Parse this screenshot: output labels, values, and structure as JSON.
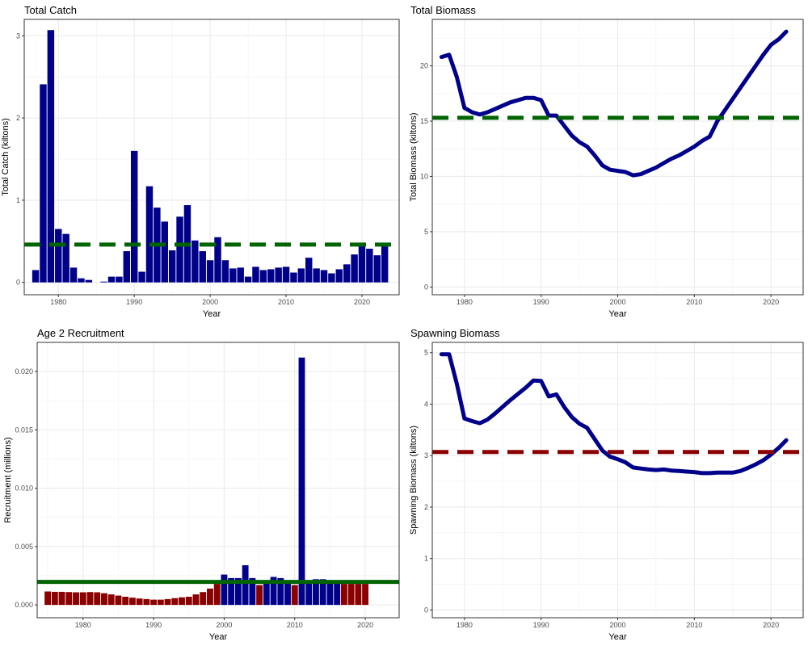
{
  "chart_data": [
    {
      "type": "bar",
      "title": "Total Catch",
      "xlabel": "Year",
      "ylabel": "Total Catch (kiltons)",
      "xlim": [
        1975.5,
        2024.9
      ],
      "ylim": [
        -0.15,
        3.2
      ],
      "x_ticks": [
        1980,
        1990,
        2000,
        2010,
        2020
      ],
      "y_ticks": [
        0,
        1,
        2,
        3
      ],
      "grid": true,
      "bar_color": "#00008B",
      "x": [
        1977,
        1978,
        1979,
        1980,
        1981,
        1982,
        1983,
        1984,
        1985,
        1986,
        1987,
        1988,
        1989,
        1990,
        1991,
        1992,
        1993,
        1994,
        1995,
        1996,
        1997,
        1998,
        1999,
        2000,
        2001,
        2002,
        2003,
        2004,
        2005,
        2006,
        2007,
        2008,
        2009,
        2010,
        2011,
        2012,
        2013,
        2014,
        2015,
        2016,
        2017,
        2018,
        2019,
        2020,
        2021,
        2022,
        2023
      ],
      "values": [
        0.15,
        2.41,
        3.07,
        0.65,
        0.59,
        0.18,
        0.05,
        0.03,
        0,
        0.01,
        0.07,
        0.07,
        0.38,
        1.6,
        0.13,
        1.17,
        0.91,
        0.74,
        0.39,
        0.8,
        0.94,
        0.51,
        0.38,
        0.27,
        0.55,
        0.27,
        0.17,
        0.18,
        0.07,
        0.19,
        0.15,
        0.16,
        0.18,
        0.19,
        0.12,
        0.17,
        0.3,
        0.17,
        0.15,
        0.11,
        0.16,
        0.22,
        0.34,
        0.44,
        0.41,
        0.33,
        0.45
      ],
      "reference_line": {
        "value": 0.46,
        "color": "#006400",
        "style": "dashed"
      }
    },
    {
      "type": "line",
      "title": "Total Biomass",
      "xlabel": "Year",
      "ylabel": "Total Biomass (kiltons)",
      "xlim": [
        1975.8,
        2024.2
      ],
      "ylim": [
        -0.7,
        24.2
      ],
      "x_ticks": [
        1980,
        1990,
        2000,
        2010,
        2020
      ],
      "y_ticks": [
        0,
        5,
        10,
        15,
        20
      ],
      "grid": true,
      "line_color": "#00008B",
      "x": [
        1977,
        1978,
        1979,
        1980,
        1981,
        1982,
        1983,
        1984,
        1985,
        1986,
        1987,
        1988,
        1989,
        1990,
        1991,
        1992,
        1993,
        1994,
        1995,
        1996,
        1997,
        1998,
        1999,
        2000,
        2001,
        2002,
        2003,
        2004,
        2005,
        2006,
        2007,
        2008,
        2009,
        2010,
        2011,
        2012,
        2013,
        2014,
        2015,
        2016,
        2017,
        2018,
        2019,
        2020,
        2021,
        2022
      ],
      "y": [
        20.8,
        21.0,
        19.0,
        16.2,
        15.8,
        15.6,
        15.8,
        16.1,
        16.4,
        16.7,
        16.9,
        17.1,
        17.1,
        16.9,
        15.5,
        15.5,
        14.6,
        13.7,
        13.1,
        12.7,
        11.9,
        11.0,
        10.6,
        10.5,
        10.4,
        10.1,
        10.2,
        10.5,
        10.8,
        11.2,
        11.6,
        11.9,
        12.3,
        12.7,
        13.2,
        13.6,
        15.0,
        16.0,
        17.0,
        18.0,
        19.0,
        20.0,
        21.0,
        21.9,
        22.4,
        23.1
      ],
      "reference_line": {
        "value": 15.3,
        "color": "#006400",
        "style": "dashed"
      }
    },
    {
      "type": "bar",
      "title": "Age 2 Recruitment",
      "xlabel": "Year",
      "ylabel": "Recruitment (millions)",
      "xlim": [
        1973.5,
        2024.8
      ],
      "ylim": [
        -0.0011,
        0.0225
      ],
      "x_ticks": [
        1980,
        1990,
        2000,
        2010,
        2020
      ],
      "y_ticks": [
        0.0,
        0.005,
        0.01,
        0.015,
        0.02
      ],
      "y_tick_labels": [
        "0.000",
        "0.005",
        "0.010",
        "0.015",
        "0.020"
      ],
      "grid": true,
      "x": [
        1975,
        1976,
        1977,
        1978,
        1979,
        1980,
        1981,
        1982,
        1983,
        1984,
        1985,
        1986,
        1987,
        1988,
        1989,
        1990,
        1991,
        1992,
        1993,
        1994,
        1995,
        1996,
        1997,
        1998,
        1999,
        2000,
        2001,
        2002,
        2003,
        2004,
        2005,
        2006,
        2007,
        2008,
        2009,
        2010,
        2011,
        2012,
        2013,
        2014,
        2015,
        2016,
        2017,
        2018,
        2019,
        2020
      ],
      "values": [
        0.00115,
        0.00112,
        0.00112,
        0.0011,
        0.00108,
        0.00108,
        0.0011,
        0.00108,
        0.001,
        0.0009,
        0.0008,
        0.0007,
        0.00062,
        0.00055,
        0.0005,
        0.00045,
        0.00045,
        0.0005,
        0.00058,
        0.00065,
        0.0007,
        0.0009,
        0.0011,
        0.0014,
        0.0018,
        0.0026,
        0.0023,
        0.0023,
        0.0034,
        0.0023,
        0.0017,
        0.0021,
        0.0024,
        0.0023,
        0.0021,
        0.0017,
        0.0212,
        0.0021,
        0.0022,
        0.0022,
        0.0021,
        0.0021,
        0.0018,
        0.0018,
        0.0018,
        0.0018
      ],
      "bar_colors": [
        "#8B0000",
        "#8B0000",
        "#8B0000",
        "#8B0000",
        "#8B0000",
        "#8B0000",
        "#8B0000",
        "#8B0000",
        "#8B0000",
        "#8B0000",
        "#8B0000",
        "#8B0000",
        "#8B0000",
        "#8B0000",
        "#8B0000",
        "#8B0000",
        "#8B0000",
        "#8B0000",
        "#8B0000",
        "#8B0000",
        "#8B0000",
        "#8B0000",
        "#8B0000",
        "#8B0000",
        "#8B0000",
        "#00008B",
        "#00008B",
        "#00008B",
        "#00008B",
        "#00008B",
        "#8B0000",
        "#00008B",
        "#00008B",
        "#00008B",
        "#00008B",
        "#8B0000",
        "#00008B",
        "#00008B",
        "#00008B",
        "#00008B",
        "#00008B",
        "#00008B",
        "#8B0000",
        "#8B0000",
        "#8B0000",
        "#8B0000"
      ],
      "reference_line": {
        "value": 0.00197,
        "color": "#006400",
        "style": "solid"
      }
    },
    {
      "type": "line",
      "title": "Spawning Biomass",
      "xlabel": "Year",
      "ylabel": "Spawning Biomass (kiltons)",
      "xlim": [
        1975.8,
        2024.2
      ],
      "ylim": [
        -0.15,
        5.2
      ],
      "x_ticks": [
        1980,
        1990,
        2000,
        2010,
        2020
      ],
      "y_ticks": [
        0,
        1,
        2,
        3,
        4,
        5
      ],
      "grid": true,
      "line_color": "#00008B",
      "x": [
        1977,
        1978,
        1979,
        1980,
        1981,
        1982,
        1983,
        1984,
        1985,
        1986,
        1987,
        1988,
        1989,
        1990,
        1991,
        1992,
        1993,
        1994,
        1995,
        1996,
        1997,
        1998,
        1999,
        2000,
        2001,
        2002,
        2003,
        2004,
        2005,
        2006,
        2007,
        2008,
        2009,
        2010,
        2011,
        2012,
        2013,
        2014,
        2015,
        2016,
        2017,
        2018,
        2019,
        2020,
        2021,
        2022
      ],
      "y": [
        4.97,
        4.97,
        4.4,
        3.72,
        3.67,
        3.63,
        3.7,
        3.82,
        3.95,
        4.08,
        4.2,
        4.32,
        4.46,
        4.45,
        4.15,
        4.19,
        3.95,
        3.75,
        3.62,
        3.54,
        3.32,
        3.1,
        2.98,
        2.93,
        2.87,
        2.77,
        2.75,
        2.73,
        2.72,
        2.73,
        2.71,
        2.7,
        2.69,
        2.68,
        2.66,
        2.66,
        2.67,
        2.67,
        2.67,
        2.7,
        2.76,
        2.83,
        2.91,
        3.02,
        3.15,
        3.3
      ],
      "reference_line": {
        "value": 3.07,
        "color": "#8B0000",
        "style": "dashed"
      }
    }
  ]
}
